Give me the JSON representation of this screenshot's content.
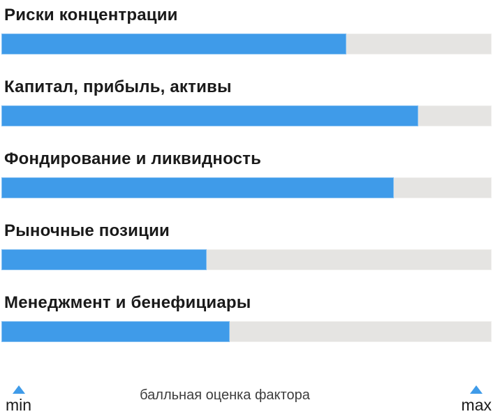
{
  "chart_data": {
    "type": "bar",
    "orientation": "horizontal",
    "title": "",
    "categories": [
      "Риски концентрации",
      "Капитал, прибыль, активы",
      "Фондирование и ликвидность",
      "Рыночные позиции",
      "Менеджмент и бенефициары"
    ],
    "values": [
      70.5,
      85.3,
      80.3,
      42.0,
      46.7
    ],
    "values_unit": "percent of track filled (score position between min and max)",
    "xlabel": "балльная оценка фактора",
    "xlim_labels": {
      "min": "min",
      "max": "max"
    },
    "grid": false,
    "legend_position": "none",
    "colors": {
      "bar_fill": "#3f9be9",
      "bar_fill_border": "#85c0f2",
      "bar_track": "#e5e4e2",
      "bar_track_border": "#f0efed",
      "marker": "#3f9be9",
      "label_text": "#1a1a1a",
      "caption_text": "#3d3d3d"
    }
  }
}
